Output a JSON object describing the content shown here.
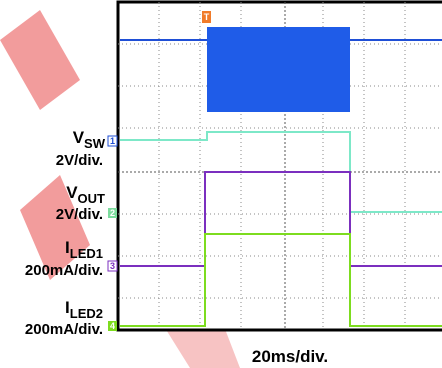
{
  "labels": {
    "vsw": {
      "main": "V",
      "sub": "SW",
      "scale": "2V/div."
    },
    "vout": {
      "main": "V",
      "sub": "OUT",
      "scale": "2V/div."
    },
    "iled1": {
      "main": "I",
      "sub": "LED1",
      "scale": "200mA/div."
    },
    "iled2": {
      "main": "I",
      "sub": "LED2",
      "scale": "200mA/div."
    },
    "time_scale": "20ms/div."
  },
  "markers": {
    "trigger": "T",
    "ch1": "1",
    "ch2": "2",
    "ch3": "3",
    "ch4": "4"
  }
}
